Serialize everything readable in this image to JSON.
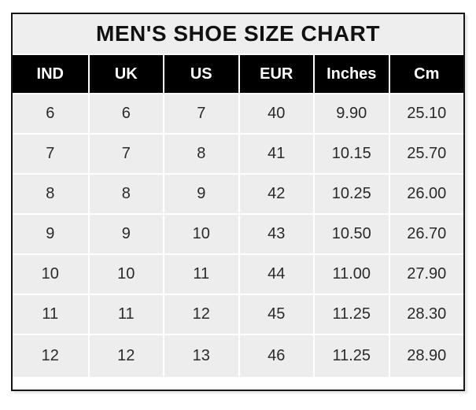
{
  "chart_data": {
    "type": "table",
    "title": "MEN'S SHOE SIZE CHART",
    "columns": [
      "IND",
      "UK",
      "US",
      "EUR",
      "Inches",
      "Cm"
    ],
    "rows": [
      [
        "6",
        "6",
        "7",
        "40",
        "9.90",
        "25.10"
      ],
      [
        "7",
        "7",
        "8",
        "41",
        "10.15",
        "25.70"
      ],
      [
        "8",
        "8",
        "9",
        "42",
        "10.25",
        "26.00"
      ],
      [
        "9",
        "9",
        "10",
        "43",
        "10.50",
        "26.70"
      ],
      [
        "10",
        "10",
        "11",
        "44",
        "11.00",
        "27.90"
      ],
      [
        "11",
        "11",
        "12",
        "45",
        "11.25",
        "28.30"
      ],
      [
        "12",
        "12",
        "13",
        "46",
        "11.25",
        "28.90"
      ]
    ]
  },
  "colors": {
    "header_bg": "#000000",
    "header_text": "#ffffff",
    "title_bg": "#eeeeee",
    "cell_bg": "#ededed",
    "grid": "#ffffff",
    "border": "#161616",
    "cell_text": "#2a2a2a"
  }
}
